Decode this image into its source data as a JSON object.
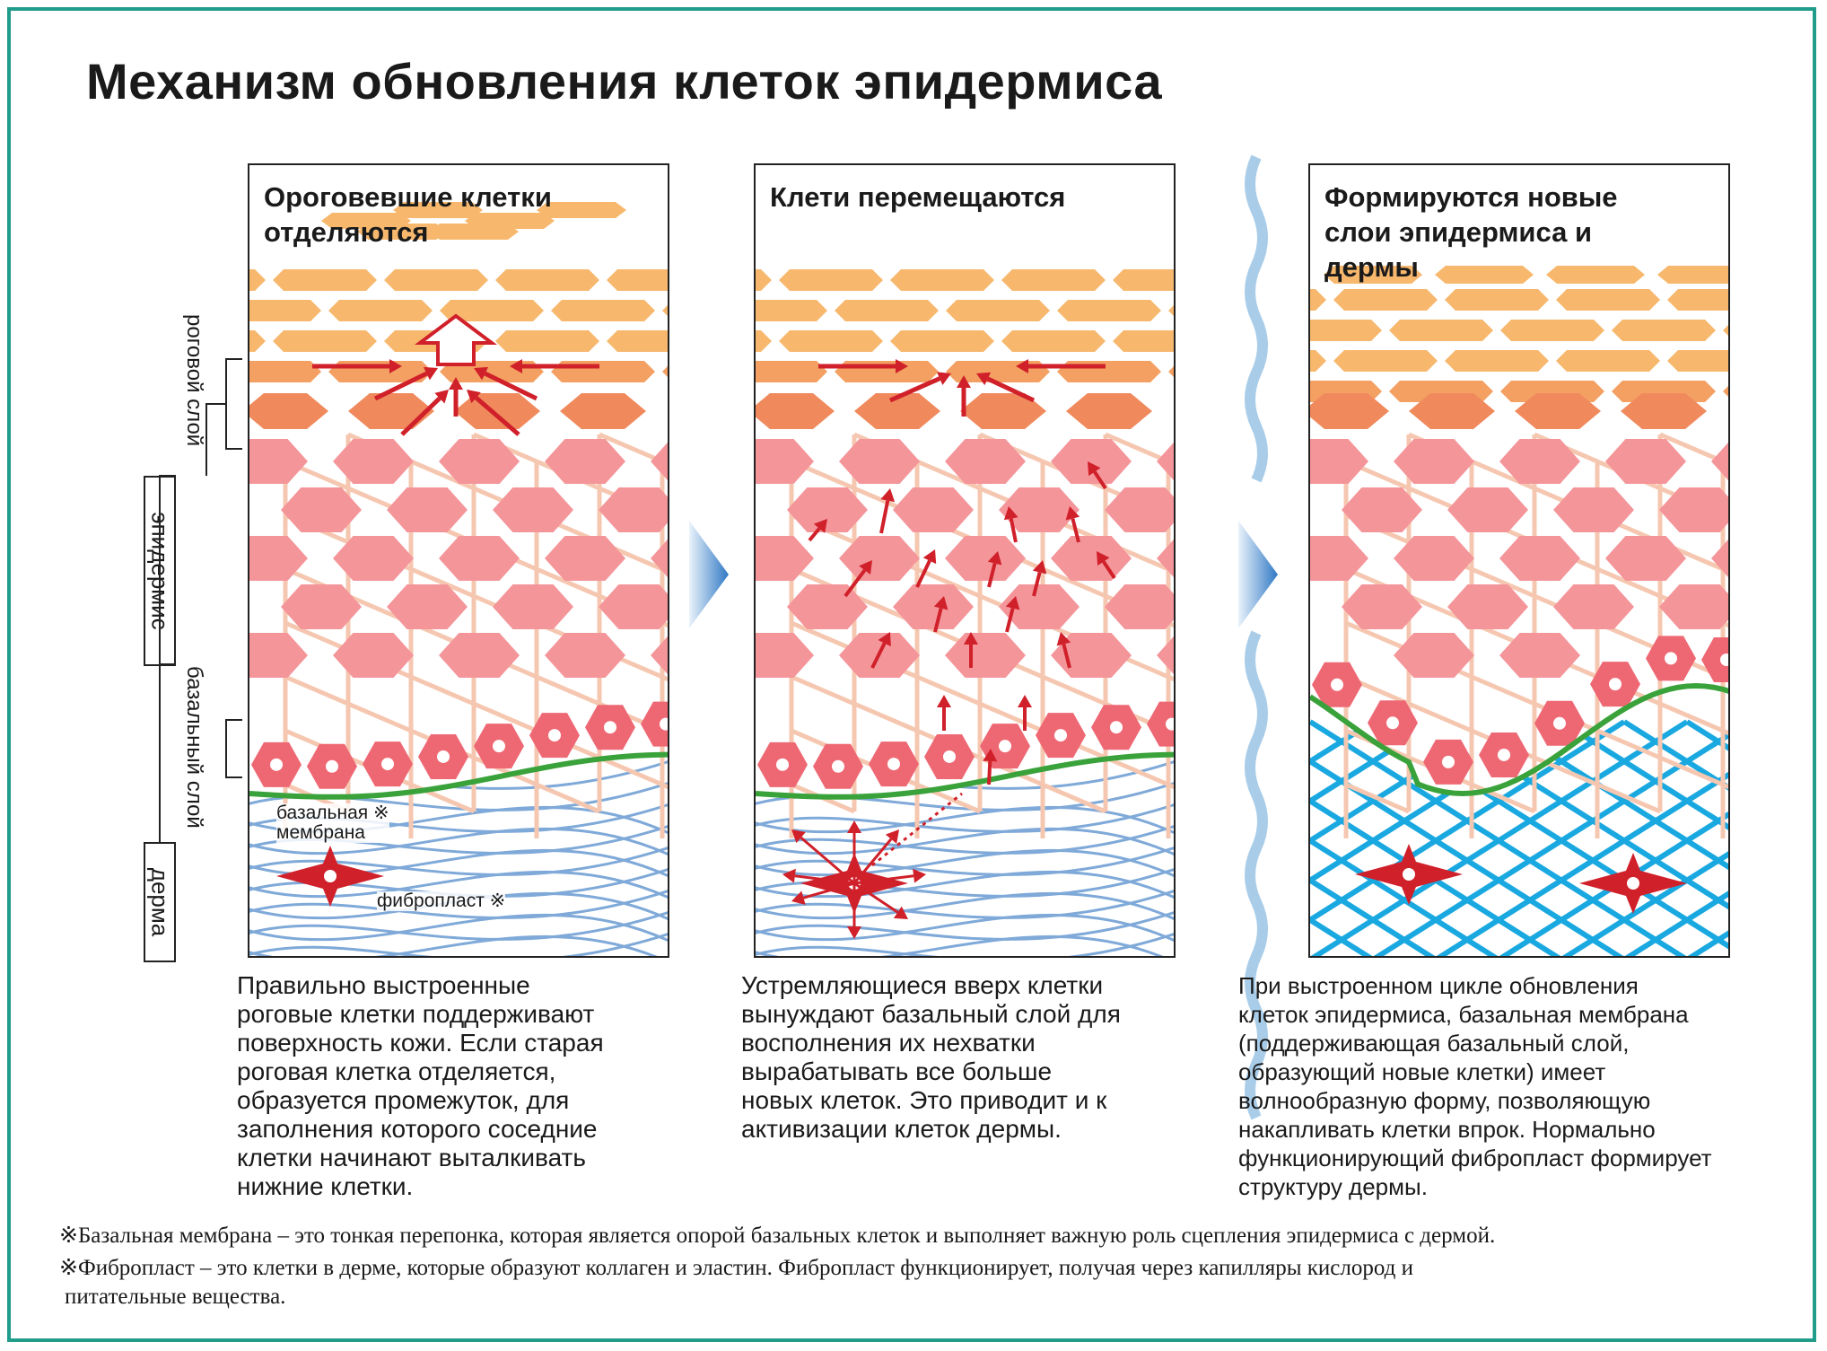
{
  "title": "Механизм обновления клеток эпидермиса",
  "panels": [
    {
      "title": "Ороговевшие клетки\nотделяются",
      "description": "Правильно выстроенные\nроговые клетки поддерживают\nповерхность кожи. Если старая\nроговая клетка отделяется,\nобразуется промежуток, для\nзаполнения которого соседние\nклетки начинают выталкивать\nнижние клетки."
    },
    {
      "title": "Клети перемещаются",
      "description": "Устремляющиеся вверх клетки\nвынуждают базальный слой для\nвосполнения их нехватки\nвырабатывать все больше\nновых клеток. Это приводит и к\nактивизации клеток дермы."
    },
    {
      "title": "Формируются новые\nслои эпидермиса и\nдермы",
      "description": "При выстроенном цикле обновления\nклеток эпидермиса, базальная мембрана\n(поддерживающая базальный слой,\nобразующий новые клетки) имеет\nволнообразную форму, позволяющую\nнакапливать клетки впрок. Нормально\nфункционирующий фибропласт формирует\nструктуру дермы."
    }
  ],
  "side_labels": {
    "horny_layer": "роговой слой",
    "epidermis": "эпидермис",
    "basal_layer": "базальный слой",
    "dermis": "дерма"
  },
  "annotations": {
    "basal_membrane": "базальная ※\nмембрана",
    "fibroblast": "фибропласт ※"
  },
  "notes": [
    "※Базальная мембрана – это тонкая перепонка, которая является опорой базальных клеток и выполняет важную роль сцепления эпидермиса с дермой.",
    " ※Фибропласт – это клетки в дерме, которые образуют коллаген и эластин. Фибропласт функционирует, получая через капилляры кислород и",
    "питательные вещества."
  ],
  "colors": {
    "frame": "#1f9c8a",
    "horny_cell": "#f7b86e",
    "granular_cell": "#f08a5d",
    "spinous_cell": "#f4959a",
    "basal_cell": "#ee6874",
    "membrane": "#3aa23a",
    "arrow": "#d0202a",
    "dermis_fiber": "#7fa9d8",
    "healthy_fiber": "#1aa8e0",
    "divider": "#a9cde9"
  }
}
